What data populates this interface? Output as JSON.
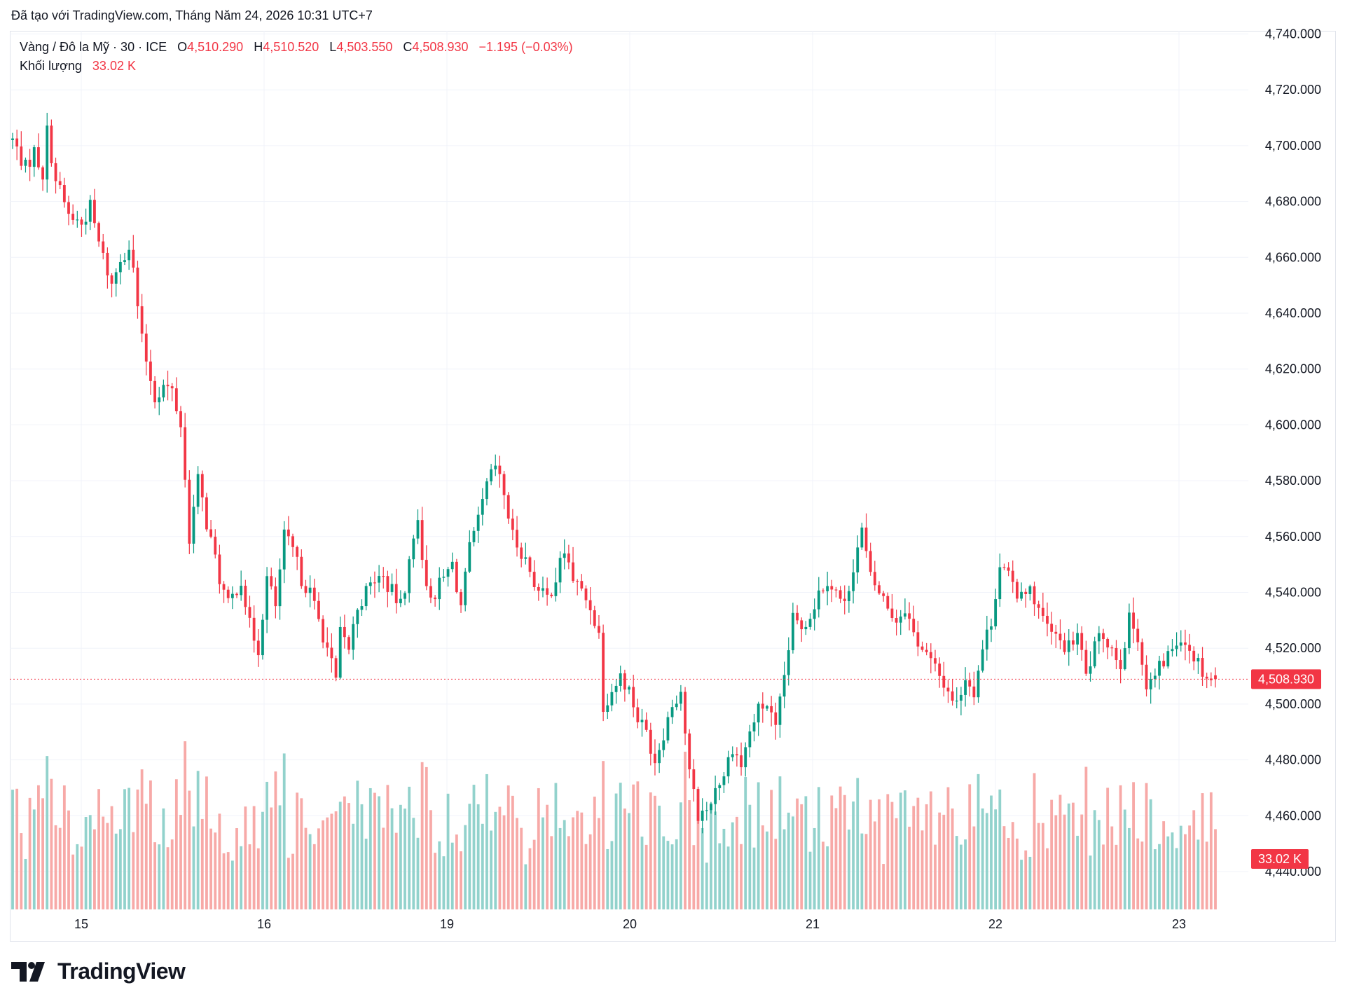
{
  "credit": "Đã tạo với TradingView.com, Tháng Năm 24, 2026 10:31 UTC+7",
  "legend": {
    "symbol": "Vàng / Đô la Mỹ · 30 · ICE",
    "open_label": "O",
    "open": "4,510.290",
    "high_label": "H",
    "high": "4,510.520",
    "low_label": "L",
    "low": "4,503.550",
    "close_label": "C",
    "close": "4,508.930",
    "change": "−1.195 (−0.03%)",
    "volume_label": "Khối lượng",
    "volume": "33.02 K"
  },
  "brand": "TradingView",
  "colors": {
    "up": "#089981",
    "down": "#f23645",
    "up_vol": "#92d2cc",
    "down_vol": "#f7a9a7",
    "grid": "#f0f3fa"
  },
  "chart_data": {
    "type": "candlestick",
    "interval": "30",
    "ylim": [
      4430,
      4745
    ],
    "y_ticks": [
      "4,440.000",
      "4,460.000",
      "4,480.000",
      "4,500.000",
      "4,520.000",
      "4,540.000",
      "4,560.000",
      "4,580.000",
      "4,600.000",
      "4,620.000",
      "4,640.000",
      "4,660.000",
      "4,680.000",
      "4,700.000",
      "4,720.000",
      "4,740.000"
    ],
    "x_ticks": [
      "15",
      "16",
      "19",
      "20",
      "21",
      "22",
      "23"
    ],
    "last_price_label": "4,508.930",
    "last_price": 4508.93,
    "last_volume_label": "33.02 K",
    "price_path": [
      [
        0,
        4702
      ],
      [
        3,
        4692
      ],
      [
        5,
        4698
      ],
      [
        7,
        4690
      ],
      [
        8,
        4705
      ],
      [
        10,
        4688
      ],
      [
        13,
        4675
      ],
      [
        16,
        4672
      ],
      [
        18,
        4678
      ],
      [
        20,
        4665
      ],
      [
        23,
        4650
      ],
      [
        25,
        4660
      ],
      [
        27,
        4664
      ],
      [
        28,
        4655
      ],
      [
        30,
        4630
      ],
      [
        33,
        4610
      ],
      [
        35,
        4614
      ],
      [
        37,
        4612
      ],
      [
        39,
        4600
      ],
      [
        41,
        4560
      ],
      [
        43,
        4580
      ],
      [
        45,
        4565
      ],
      [
        48,
        4545
      ],
      [
        50,
        4535
      ],
      [
        53,
        4545
      ],
      [
        55,
        4528
      ],
      [
        57,
        4520
      ],
      [
        59,
        4545
      ],
      [
        61,
        4535
      ],
      [
        63,
        4560
      ],
      [
        65,
        4555
      ],
      [
        67,
        4545
      ],
      [
        69,
        4540
      ],
      [
        71,
        4530
      ],
      [
        73,
        4520
      ],
      [
        75,
        4508
      ],
      [
        76,
        4525
      ],
      [
        78,
        4520
      ],
      [
        80,
        4535
      ],
      [
        82,
        4540
      ],
      [
        84,
        4545
      ],
      [
        86,
        4545
      ],
      [
        88,
        4540
      ],
      [
        90,
        4535
      ],
      [
        92,
        4550
      ],
      [
        94,
        4568
      ],
      [
        96,
        4540
      ],
      [
        98,
        4540
      ],
      [
        100,
        4545
      ],
      [
        102,
        4550
      ],
      [
        104,
        4535
      ],
      [
        106,
        4555
      ],
      [
        108,
        4565
      ],
      [
        110,
        4578
      ],
      [
        112,
        4585
      ],
      [
        114,
        4575
      ],
      [
        116,
        4560
      ],
      [
        118,
        4555
      ],
      [
        120,
        4548
      ],
      [
        122,
        4540
      ],
      [
        124,
        4538
      ],
      [
        126,
        4545
      ],
      [
        128,
        4555
      ],
      [
        130,
        4545
      ],
      [
        132,
        4540
      ],
      [
        134,
        4535
      ],
      [
        136,
        4525
      ],
      [
        137,
        4500
      ],
      [
        139,
        4505
      ],
      [
        141,
        4510
      ],
      [
        143,
        4505
      ],
      [
        145,
        4495
      ],
      [
        147,
        4490
      ],
      [
        149,
        4480
      ],
      [
        151,
        4490
      ],
      [
        153,
        4500
      ],
      [
        155,
        4505
      ],
      [
        157,
        4475
      ],
      [
        159,
        4460
      ],
      [
        161,
        4462
      ],
      [
        163,
        4470
      ],
      [
        165,
        4475
      ],
      [
        167,
        4485
      ],
      [
        169,
        4478
      ],
      [
        171,
        4490
      ],
      [
        173,
        4498
      ],
      [
        175,
        4500
      ],
      [
        177,
        4490
      ],
      [
        179,
        4510
      ],
      [
        181,
        4530
      ],
      [
        183,
        4528
      ],
      [
        185,
        4532
      ],
      [
        187,
        4540
      ],
      [
        189,
        4545
      ],
      [
        191,
        4540
      ],
      [
        193,
        4535
      ],
      [
        195,
        4550
      ],
      [
        197,
        4562
      ],
      [
        199,
        4545
      ],
      [
        201,
        4540
      ],
      [
        203,
        4535
      ],
      [
        205,
        4530
      ],
      [
        207,
        4535
      ],
      [
        209,
        4525
      ],
      [
        211,
        4520
      ],
      [
        213,
        4515
      ],
      [
        215,
        4510
      ],
      [
        217,
        4505
      ],
      [
        219,
        4500
      ],
      [
        221,
        4510
      ],
      [
        223,
        4505
      ],
      [
        225,
        4520
      ],
      [
        227,
        4530
      ],
      [
        229,
        4550
      ],
      [
        231,
        4545
      ],
      [
        233,
        4540
      ],
      [
        235,
        4542
      ],
      [
        237,
        4538
      ],
      [
        239,
        4530
      ],
      [
        241,
        4525
      ],
      [
        243,
        4522
      ],
      [
        245,
        4520
      ],
      [
        247,
        4525
      ],
      [
        249,
        4510
      ],
      [
        251,
        4520
      ],
      [
        253,
        4525
      ],
      [
        255,
        4520
      ],
      [
        257,
        4515
      ],
      [
        259,
        4530
      ],
      [
        261,
        4525
      ],
      [
        263,
        4505
      ],
      [
        265,
        4510
      ],
      [
        267,
        4515
      ],
      [
        269,
        4520
      ],
      [
        271,
        4525
      ],
      [
        273,
        4520
      ],
      [
        275,
        4515
      ],
      [
        277,
        4510
      ],
      [
        279,
        4508
      ]
    ]
  }
}
